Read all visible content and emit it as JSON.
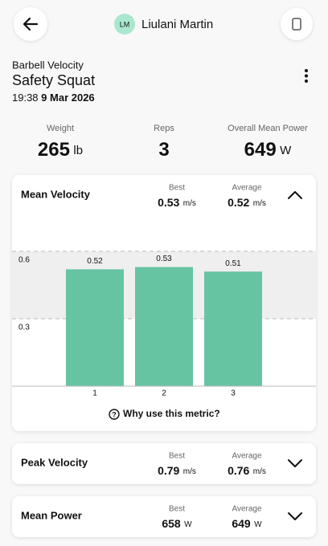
{
  "header": {
    "initials": "LM",
    "name": "Liulani Martin"
  },
  "session": {
    "category": "Barbell Velocity",
    "exercise": "Safety Squat",
    "time": "19:38",
    "date": "9 Mar 2026"
  },
  "summary": [
    {
      "label": "Weight",
      "value": 265,
      "unit": "lb"
    },
    {
      "label": "Reps",
      "value": 3
    },
    {
      "label": "Overall Mean Power",
      "value": 649,
      "unit": "W"
    }
  ],
  "metrics": [
    {
      "title": "Mean Velocity",
      "expanded": true,
      "stats": [
        {
          "label": "Best",
          "value": 0.53,
          "unit": "m/s"
        },
        {
          "label": "Average",
          "value": 0.52,
          "unit": "m/s"
        }
      ]
    },
    {
      "title": "Peak Velocity",
      "expanded": false,
      "stats": [
        {
          "label": "Best",
          "value": 0.79,
          "unit": "m/s"
        },
        {
          "label": "Average",
          "value": 0.76,
          "unit": "m/s"
        }
      ]
    },
    {
      "title": "Mean Power",
      "expanded": false,
      "stats": [
        {
          "label": "Best",
          "value": 658,
          "unit": "W"
        },
        {
          "label": "Average",
          "value": 649,
          "unit": "W"
        }
      ]
    }
  ],
  "chart_data": {
    "type": "bar",
    "categories": [
      "1",
      "2",
      "3"
    ],
    "values": [
      0.52,
      0.53,
      0.51
    ],
    "color": "#67c4a3",
    "ylim": [
      0,
      0.7
    ],
    "yticks": [
      0.3,
      0.6
    ],
    "grid": true,
    "shaded_range": [
      0.3,
      0.6
    ]
  },
  "help_link": "Why use this metric?"
}
